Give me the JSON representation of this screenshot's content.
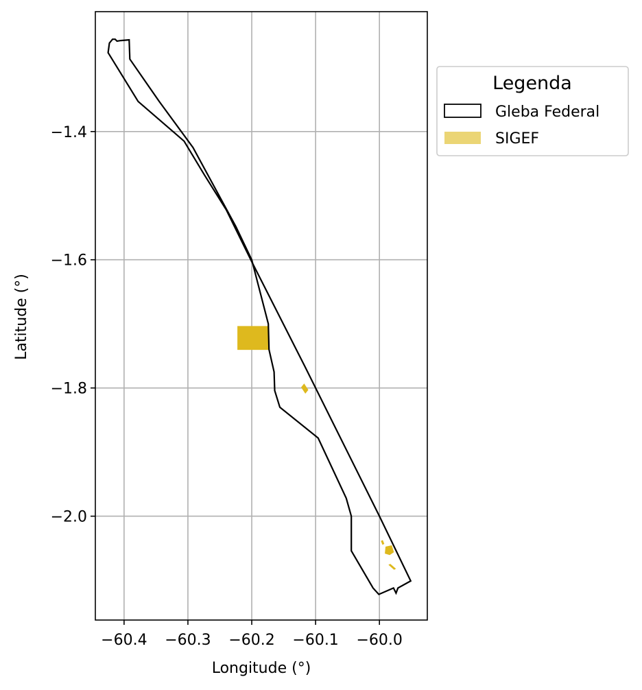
{
  "chart_data": {
    "type": "map",
    "xlabel": "Longitude (°)",
    "ylabel": "Latitude (°)",
    "xlim": [
      -60.445,
      -59.925
    ],
    "ylim": [
      -2.162,
      -1.213
    ],
    "xticks": [
      -60.4,
      -60.3,
      -60.2,
      -60.1,
      -60.0
    ],
    "xtick_labels": [
      "−60.4",
      "−60.3",
      "−60.2",
      "−60.1",
      "−60.0"
    ],
    "yticks": [
      -1.4,
      -1.6,
      -1.8,
      -2.0
    ],
    "ytick_labels": [
      "−1.4",
      "−1.6",
      "−1.8",
      "−2.0"
    ],
    "grid": true,
    "legend": {
      "title": "Legenda",
      "placement": "outside-right-top",
      "entries": [
        {
          "label": "Gleba Federal",
          "style": "outline",
          "color": "#000000"
        },
        {
          "label": "SIGEF",
          "style": "fill",
          "color": "#ebd575"
        }
      ]
    },
    "series": [
      {
        "name": "Gleba Federal",
        "kind": "polygon-outline",
        "color": "#000000",
        "points": [
          [
            -60.418,
            -1.256
          ],
          [
            -60.414,
            -1.256
          ],
          [
            -60.411,
            -1.259
          ],
          [
            -60.405,
            -1.258
          ],
          [
            -60.392,
            -1.257
          ],
          [
            -60.391,
            -1.287
          ],
          [
            -60.345,
            -1.353
          ],
          [
            -60.292,
            -1.425
          ],
          [
            -60.225,
            -1.548
          ],
          [
            -60.2,
            -1.6
          ],
          [
            -60.174,
            -1.7
          ],
          [
            -60.173,
            -1.74
          ],
          [
            -60.165,
            -1.775
          ],
          [
            -60.164,
            -1.804
          ],
          [
            -60.156,
            -1.83
          ],
          [
            -60.096,
            -1.878
          ],
          [
            -60.052,
            -1.972
          ],
          [
            -60.044,
            -2.0
          ],
          [
            -60.044,
            -2.054
          ],
          [
            -60.01,
            -2.112
          ],
          [
            -60.001,
            -2.122
          ],
          [
            -59.985,
            -2.115
          ],
          [
            -59.978,
            -2.112
          ],
          [
            -59.974,
            -2.12
          ],
          [
            -59.971,
            -2.112
          ],
          [
            -59.951,
            -2.101
          ],
          [
            -60.0,
            -2.0
          ],
          [
            -60.117,
            -1.766
          ],
          [
            -60.2,
            -1.603
          ],
          [
            -60.24,
            -1.522
          ],
          [
            -60.274,
            -1.468
          ],
          [
            -60.306,
            -1.415
          ],
          [
            -60.378,
            -1.353
          ],
          [
            -60.425,
            -1.277
          ],
          [
            -60.423,
            -1.262
          ]
        ]
      },
      {
        "name": "SIGEF",
        "kind": "polygon-fill",
        "color": "#deb91e",
        "polygons": [
          [
            [
              -60.222,
              -1.704
            ],
            [
              -60.174,
              -1.704
            ],
            [
              -60.173,
              -1.74
            ],
            [
              -60.222,
              -1.74
            ]
          ],
          [
            [
              -60.122,
              -1.799
            ],
            [
              -60.118,
              -1.794
            ],
            [
              -60.112,
              -1.803
            ],
            [
              -60.116,
              -1.808
            ]
          ],
          [
            [
              -59.99,
              -2.048
            ],
            [
              -59.981,
              -2.046
            ],
            [
              -59.978,
              -2.056
            ],
            [
              -59.984,
              -2.06
            ],
            [
              -59.991,
              -2.058
            ]
          ],
          [
            [
              -59.985,
              -2.076
            ],
            [
              -59.983,
              -2.075
            ],
            [
              -59.975,
              -2.082
            ],
            [
              -59.977,
              -2.083
            ]
          ],
          [
            [
              -59.997,
              -2.039
            ],
            [
              -59.995,
              -2.038
            ],
            [
              -59.993,
              -2.043
            ],
            [
              -59.995,
              -2.044
            ]
          ]
        ]
      }
    ]
  }
}
